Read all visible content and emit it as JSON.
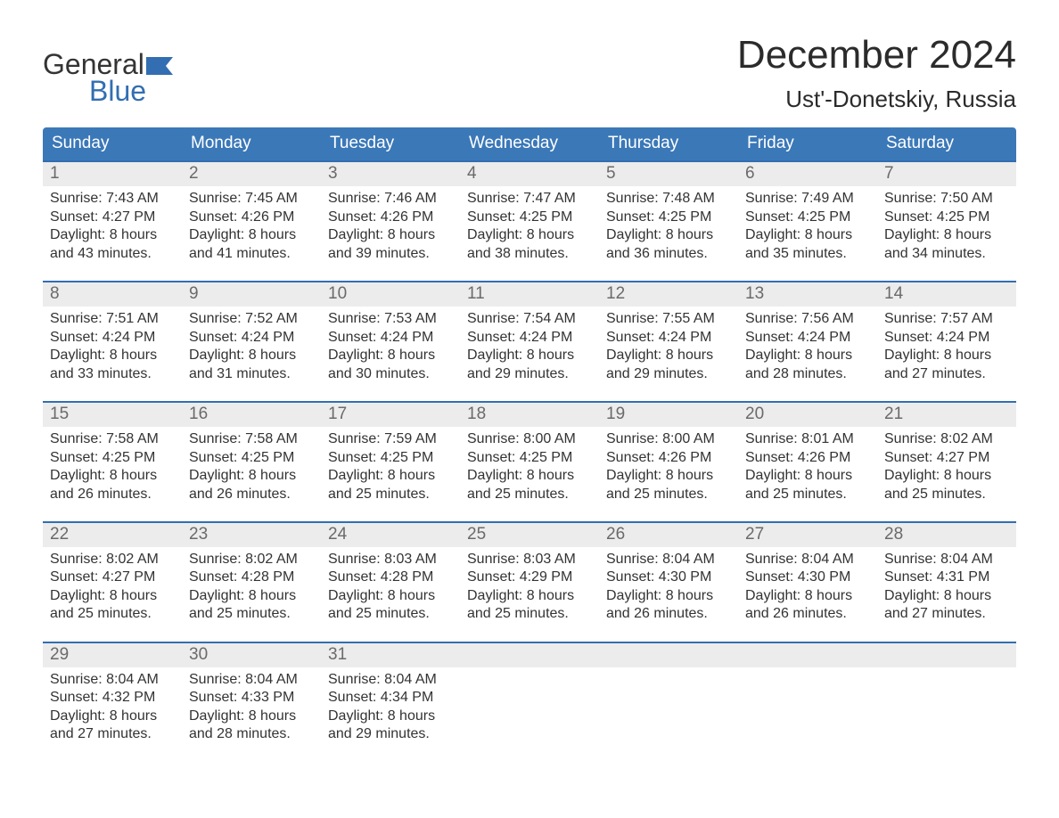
{
  "colors": {
    "header_bg": "#3b78b8",
    "header_text": "#ffffff",
    "accent_blue": "#326eb1",
    "daynum_bg": "#ececec",
    "daynum_text": "#6a6a6a",
    "body_text": "#333333",
    "logo_gray": "#343434",
    "page_bg": "#ffffff"
  },
  "typography": {
    "title_fontsize": 44,
    "subtitle_fontsize": 26,
    "header_fontsize": 19,
    "daynum_fontsize": 19,
    "cell_fontsize": 16,
    "logo_fontsize": 32,
    "font_family": "Arial"
  },
  "logo": {
    "line1": "General",
    "line2": "Blue",
    "flag_color": "#326eb1"
  },
  "title": {
    "month": "December 2024",
    "location": "Ust'-Donetskiy, Russia"
  },
  "weekday_headers": [
    "Sunday",
    "Monday",
    "Tuesday",
    "Wednesday",
    "Thursday",
    "Friday",
    "Saturday"
  ],
  "weeks": [
    [
      {
        "n": "1",
        "sr": "7:43 AM",
        "ss": "4:27 PM",
        "dl": "8 hours and 43 minutes."
      },
      {
        "n": "2",
        "sr": "7:45 AM",
        "ss": "4:26 PM",
        "dl": "8 hours and 41 minutes."
      },
      {
        "n": "3",
        "sr": "7:46 AM",
        "ss": "4:26 PM",
        "dl": "8 hours and 39 minutes."
      },
      {
        "n": "4",
        "sr": "7:47 AM",
        "ss": "4:25 PM",
        "dl": "8 hours and 38 minutes."
      },
      {
        "n": "5",
        "sr": "7:48 AM",
        "ss": "4:25 PM",
        "dl": "8 hours and 36 minutes."
      },
      {
        "n": "6",
        "sr": "7:49 AM",
        "ss": "4:25 PM",
        "dl": "8 hours and 35 minutes."
      },
      {
        "n": "7",
        "sr": "7:50 AM",
        "ss": "4:25 PM",
        "dl": "8 hours and 34 minutes."
      }
    ],
    [
      {
        "n": "8",
        "sr": "7:51 AM",
        "ss": "4:24 PM",
        "dl": "8 hours and 33 minutes."
      },
      {
        "n": "9",
        "sr": "7:52 AM",
        "ss": "4:24 PM",
        "dl": "8 hours and 31 minutes."
      },
      {
        "n": "10",
        "sr": "7:53 AM",
        "ss": "4:24 PM",
        "dl": "8 hours and 30 minutes."
      },
      {
        "n": "11",
        "sr": "7:54 AM",
        "ss": "4:24 PM",
        "dl": "8 hours and 29 minutes."
      },
      {
        "n": "12",
        "sr": "7:55 AM",
        "ss": "4:24 PM",
        "dl": "8 hours and 29 minutes."
      },
      {
        "n": "13",
        "sr": "7:56 AM",
        "ss": "4:24 PM",
        "dl": "8 hours and 28 minutes."
      },
      {
        "n": "14",
        "sr": "7:57 AM",
        "ss": "4:24 PM",
        "dl": "8 hours and 27 minutes."
      }
    ],
    [
      {
        "n": "15",
        "sr": "7:58 AM",
        "ss": "4:25 PM",
        "dl": "8 hours and 26 minutes."
      },
      {
        "n": "16",
        "sr": "7:58 AM",
        "ss": "4:25 PM",
        "dl": "8 hours and 26 minutes."
      },
      {
        "n": "17",
        "sr": "7:59 AM",
        "ss": "4:25 PM",
        "dl": "8 hours and 25 minutes."
      },
      {
        "n": "18",
        "sr": "8:00 AM",
        "ss": "4:25 PM",
        "dl": "8 hours and 25 minutes."
      },
      {
        "n": "19",
        "sr": "8:00 AM",
        "ss": "4:26 PM",
        "dl": "8 hours and 25 minutes."
      },
      {
        "n": "20",
        "sr": "8:01 AM",
        "ss": "4:26 PM",
        "dl": "8 hours and 25 minutes."
      },
      {
        "n": "21",
        "sr": "8:02 AM",
        "ss": "4:27 PM",
        "dl": "8 hours and 25 minutes."
      }
    ],
    [
      {
        "n": "22",
        "sr": "8:02 AM",
        "ss": "4:27 PM",
        "dl": "8 hours and 25 minutes."
      },
      {
        "n": "23",
        "sr": "8:02 AM",
        "ss": "4:28 PM",
        "dl": "8 hours and 25 minutes."
      },
      {
        "n": "24",
        "sr": "8:03 AM",
        "ss": "4:28 PM",
        "dl": "8 hours and 25 minutes."
      },
      {
        "n": "25",
        "sr": "8:03 AM",
        "ss": "4:29 PM",
        "dl": "8 hours and 25 minutes."
      },
      {
        "n": "26",
        "sr": "8:04 AM",
        "ss": "4:30 PM",
        "dl": "8 hours and 26 minutes."
      },
      {
        "n": "27",
        "sr": "8:04 AM",
        "ss": "4:30 PM",
        "dl": "8 hours and 26 minutes."
      },
      {
        "n": "28",
        "sr": "8:04 AM",
        "ss": "4:31 PM",
        "dl": "8 hours and 27 minutes."
      }
    ],
    [
      {
        "n": "29",
        "sr": "8:04 AM",
        "ss": "4:32 PM",
        "dl": "8 hours and 27 minutes."
      },
      {
        "n": "30",
        "sr": "8:04 AM",
        "ss": "4:33 PM",
        "dl": "8 hours and 28 minutes."
      },
      {
        "n": "31",
        "sr": "8:04 AM",
        "ss": "4:34 PM",
        "dl": "8 hours and 29 minutes."
      },
      null,
      null,
      null,
      null
    ]
  ],
  "labels": {
    "sunrise": "Sunrise:",
    "sunset": "Sunset:",
    "daylight": "Daylight:"
  }
}
